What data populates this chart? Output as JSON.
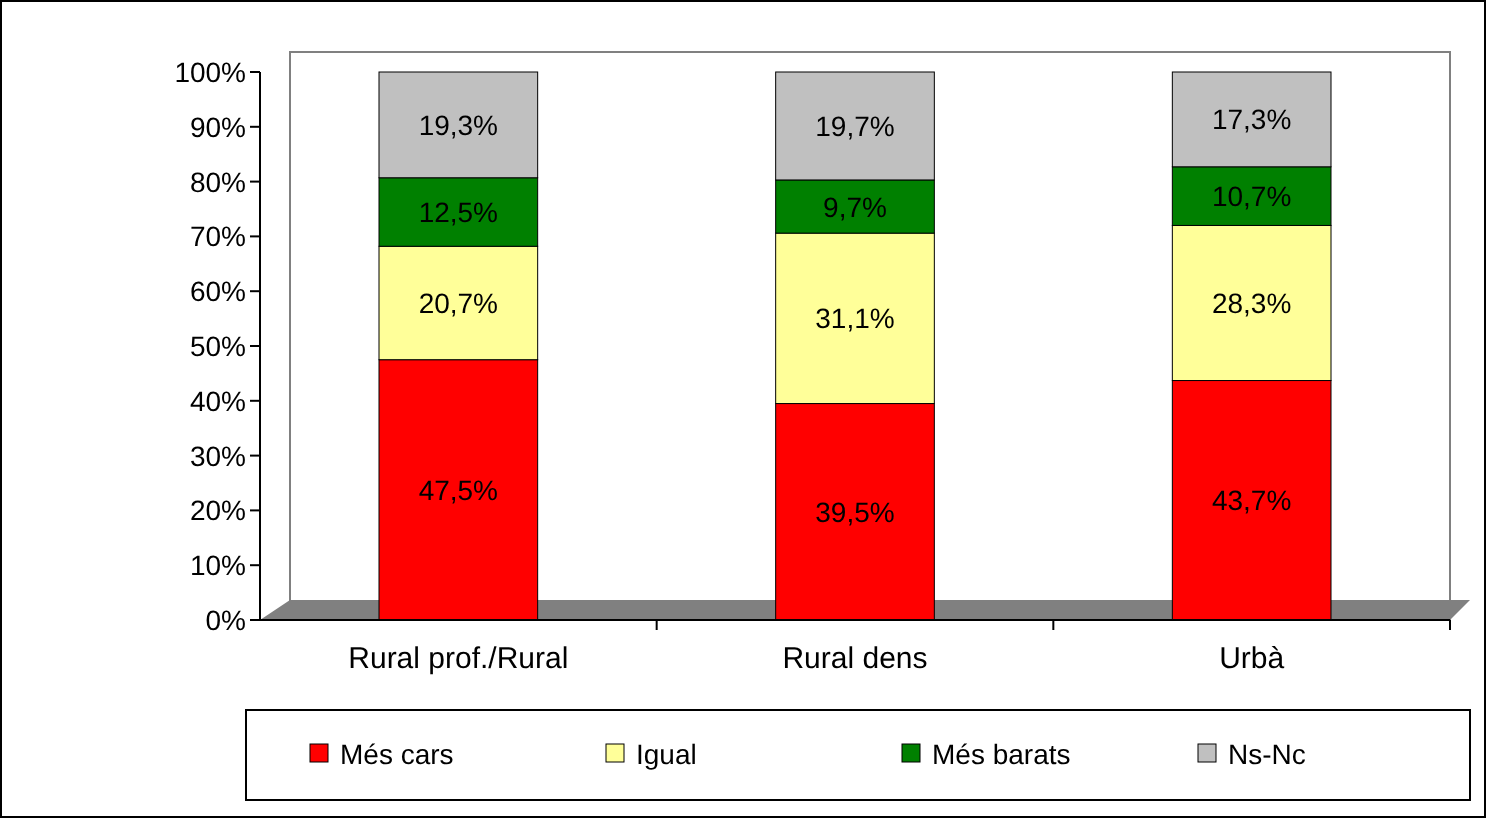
{
  "chart_data": {
    "type": "bar",
    "stacked": true,
    "categories": [
      "Rural prof./Rural",
      "Rural dens",
      "Urbà"
    ],
    "series": [
      {
        "name": "Més cars",
        "color": "#ff0000",
        "values": [
          47.5,
          39.5,
          43.7
        ],
        "value_labels": [
          "47,5%",
          "39,5%",
          "43,7%"
        ]
      },
      {
        "name": "Igual",
        "color": "#ffff99",
        "values": [
          20.7,
          31.1,
          28.3
        ],
        "value_labels": [
          "20,7%",
          "31,1%",
          "28,3%"
        ]
      },
      {
        "name": "Més barats",
        "color": "#008000",
        "values": [
          12.5,
          9.7,
          10.7
        ],
        "value_labels": [
          "12,5%",
          "9,7%",
          "10,7%"
        ]
      },
      {
        "name": "Ns-Nc",
        "color": "#c0c0c0",
        "values": [
          19.3,
          19.7,
          17.3
        ],
        "value_labels": [
          "19,3%",
          "19,7%",
          "17,3%"
        ]
      }
    ],
    "ylim": [
      0,
      100
    ],
    "yticks": [
      {
        "value": 0,
        "label": "0%"
      },
      {
        "value": 10,
        "label": "10%"
      },
      {
        "value": 20,
        "label": "20%"
      },
      {
        "value": 30,
        "label": "30%"
      },
      {
        "value": 40,
        "label": "40%"
      },
      {
        "value": 50,
        "label": "50%"
      },
      {
        "value": 60,
        "label": "60%"
      },
      {
        "value": 70,
        "label": "70%"
      },
      {
        "value": 80,
        "label": "80%"
      },
      {
        "value": 90,
        "label": "90%"
      },
      {
        "value": 100,
        "label": "100%"
      }
    ],
    "legend": "bottom"
  }
}
